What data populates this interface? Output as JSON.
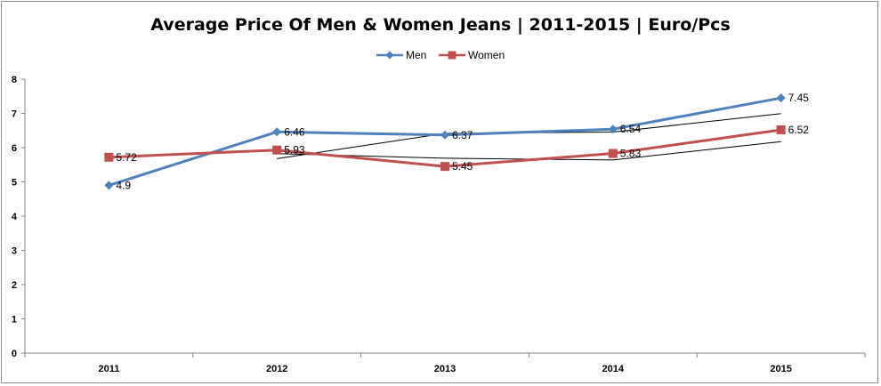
{
  "chart_data": {
    "type": "line",
    "title": "Average Price Of Men & Women Jeans | 2011-2015 | Euro/Pcs",
    "categories": [
      "2011",
      "2012",
      "2013",
      "2014",
      "2015"
    ],
    "series": [
      {
        "name": "Men",
        "values": [
          4.9,
          6.46,
          6.37,
          6.54,
          7.45
        ],
        "color": "#4f81bd",
        "marker": "diamond",
        "labels": [
          "4.9",
          "6.46",
          "6.37",
          "6.54",
          "7.45"
        ]
      },
      {
        "name": "Women",
        "values": [
          5.72,
          5.93,
          5.45,
          5.83,
          6.52
        ],
        "color": "#c0504d",
        "marker": "square",
        "labels": [
          "5.72",
          "5.93",
          "5.45",
          "5.83",
          "6.52"
        ]
      }
    ],
    "trendlines": [
      {
        "series": "Men",
        "type": "moving-average",
        "period": 2,
        "values": [
          null,
          5.68,
          6.415,
          6.455,
          6.995
        ],
        "color": "#000000"
      },
      {
        "series": "Women",
        "type": "moving-average",
        "period": 2,
        "values": [
          null,
          5.825,
          5.69,
          5.64,
          6.175
        ],
        "color": "#000000"
      }
    ],
    "ylim": [
      0,
      8
    ],
    "yticks": [
      "0",
      "1",
      "2",
      "3",
      "4",
      "5",
      "6",
      "7",
      "8"
    ],
    "ytick_values": [
      0,
      1,
      2,
      3,
      4,
      5,
      6,
      7,
      8
    ],
    "grid": false,
    "legend": "top-center",
    "xlabel": "",
    "ylabel": ""
  }
}
